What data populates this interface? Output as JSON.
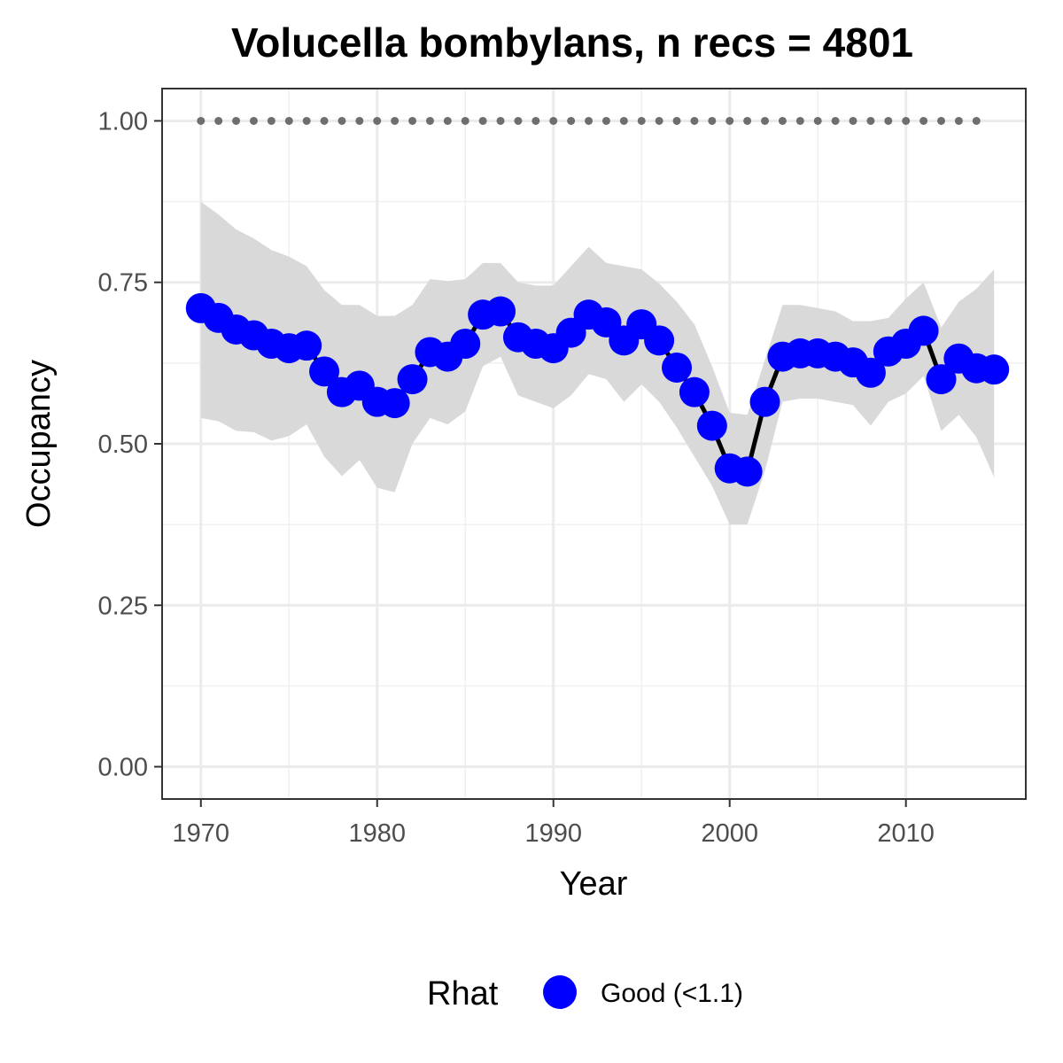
{
  "chart_data": {
    "type": "line",
    "title": "Volucella bombylans, n recs = 4801",
    "xlabel": "Year",
    "ylabel": "Occupancy",
    "xlim": [
      1967.8,
      2016.8
    ],
    "ylim": [
      -0.05,
      1.05
    ],
    "x_ticks": [
      1970,
      1980,
      1990,
      2000,
      2010
    ],
    "x_tick_labels": [
      "1970",
      "1980",
      "1990",
      "2000",
      "2010"
    ],
    "y_ticks": [
      0,
      0.25,
      0.5,
      0.75,
      1
    ],
    "y_tick_labels": [
      "0.00",
      "0.25",
      "0.50",
      "0.75",
      "1.00"
    ],
    "grid": true,
    "legend": {
      "title": "Rhat",
      "position": "bottom",
      "items": [
        {
          "label": "Good (<1.1)",
          "color": "#0000ff"
        }
      ]
    },
    "colors": {
      "points": "#0000ff",
      "line": "#000000",
      "ribbon": "#d9d9d9",
      "reference": "#6e6e6e"
    },
    "reference_line": {
      "y": 1.0,
      "x": [
        1970,
        1971,
        1972,
        1973,
        1974,
        1975,
        1976,
        1977,
        1978,
        1979,
        1980,
        1981,
        1982,
        1983,
        1984,
        1985,
        1986,
        1987,
        1988,
        1989,
        1990,
        1991,
        1992,
        1993,
        1994,
        1995,
        1996,
        1997,
        1998,
        1999,
        2000,
        2001,
        2002,
        2003,
        2004,
        2005,
        2006,
        2007,
        2008,
        2009,
        2010,
        2011,
        2012,
        2013,
        2014
      ]
    },
    "series": [
      {
        "x": [
          1970,
          1971,
          1972,
          1973,
          1974,
          1975,
          1976,
          1977,
          1978,
          1979,
          1980,
          1981,
          1982,
          1983,
          1984,
          1985,
          1986,
          1987,
          1988,
          1989,
          1990,
          1991,
          1992,
          1993,
          1994,
          1995,
          1996,
          1997,
          1998,
          1999,
          2000,
          2001,
          2002,
          2003,
          2004,
          2005,
          2006,
          2007,
          2008,
          2009,
          2010,
          2011,
          2012,
          2013,
          2014,
          2015
        ],
        "y": [
          0.71,
          0.695,
          0.677,
          0.668,
          0.655,
          0.648,
          0.652,
          0.612,
          0.58,
          0.59,
          0.565,
          0.563,
          0.6,
          0.642,
          0.635,
          0.655,
          0.7,
          0.705,
          0.665,
          0.655,
          0.648,
          0.672,
          0.7,
          0.688,
          0.66,
          0.685,
          0.66,
          0.618,
          0.58,
          0.528,
          0.462,
          0.457,
          0.565,
          0.635,
          0.64,
          0.64,
          0.635,
          0.626,
          0.61,
          0.643,
          0.655,
          0.675,
          0.6,
          0.632,
          0.617,
          0.615
        ],
        "lower": [
          0.54,
          0.535,
          0.52,
          0.518,
          0.505,
          0.512,
          0.53,
          0.48,
          0.45,
          0.475,
          0.432,
          0.425,
          0.5,
          0.54,
          0.53,
          0.55,
          0.62,
          0.635,
          0.575,
          0.565,
          0.555,
          0.575,
          0.608,
          0.6,
          0.565,
          0.592,
          0.565,
          0.525,
          0.48,
          0.435,
          0.375,
          0.375,
          0.458,
          0.565,
          0.57,
          0.57,
          0.565,
          0.56,
          0.528,
          0.565,
          0.578,
          0.605,
          0.52,
          0.545,
          0.51,
          0.448
        ],
        "upper": [
          0.875,
          0.855,
          0.832,
          0.818,
          0.8,
          0.79,
          0.775,
          0.738,
          0.715,
          0.715,
          0.698,
          0.698,
          0.715,
          0.755,
          0.752,
          0.755,
          0.78,
          0.78,
          0.75,
          0.745,
          0.745,
          0.775,
          0.805,
          0.78,
          0.775,
          0.77,
          0.748,
          0.72,
          0.685,
          0.62,
          0.548,
          0.545,
          0.63,
          0.715,
          0.715,
          0.71,
          0.705,
          0.69,
          0.69,
          0.695,
          0.725,
          0.75,
          0.68,
          0.72,
          0.74,
          0.77
        ]
      }
    ]
  }
}
